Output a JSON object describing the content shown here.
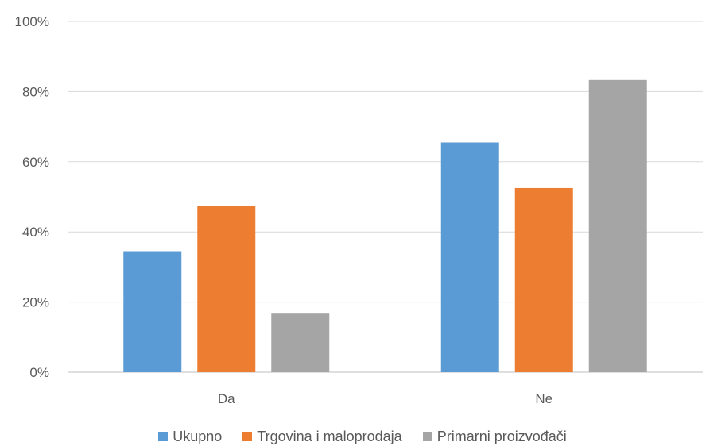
{
  "chart_data": {
    "type": "bar",
    "categories": [
      "Da",
      "Ne"
    ],
    "series": [
      {
        "name": "Ukupno",
        "values": [
          34.5,
          65.5
        ],
        "color": "#5B9BD5"
      },
      {
        "name": "Trgovina i maloprodaja",
        "values": [
          47.5,
          52.5
        ],
        "color": "#ED7D31"
      },
      {
        "name": "Primarni proizvođači",
        "values": [
          16.7,
          83.3
        ],
        "color": "#A5A5A5"
      }
    ],
    "ylim": [
      0,
      100
    ],
    "yticks": [
      "0%",
      "20%",
      "40%",
      "60%",
      "80%",
      "100%"
    ],
    "grid": true,
    "legend_position": "bottom"
  }
}
